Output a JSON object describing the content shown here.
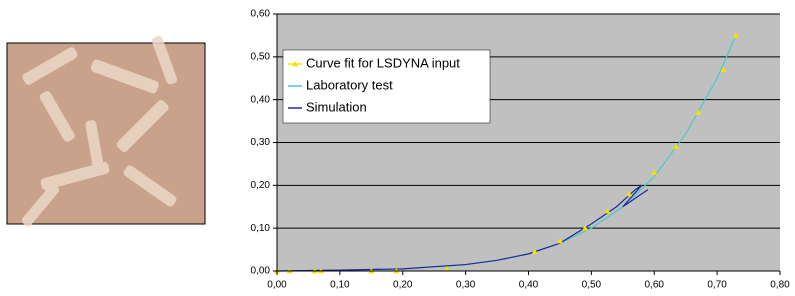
{
  "chart_data": {
    "type": "line",
    "xlim": [
      0,
      0.8
    ],
    "xticks": [
      {
        "value": 0,
        "label": "0,00"
      },
      {
        "value": 0.1,
        "label": "0,10"
      },
      {
        "value": 0.2,
        "label": "0,20"
      },
      {
        "value": 0.3,
        "label": "0,30"
      },
      {
        "value": 0.4,
        "label": "0,40"
      },
      {
        "value": 0.5,
        "label": "0,50"
      },
      {
        "value": 0.6,
        "label": "0,60"
      },
      {
        "value": 0.7,
        "label": "0,70"
      },
      {
        "value": 0.8,
        "label": "0,80"
      }
    ],
    "ylim": [
      0,
      0.6
    ],
    "yticks": [
      {
        "value": 0,
        "label": "0,00"
      },
      {
        "value": 0.1,
        "label": "0,10"
      },
      {
        "value": 0.2,
        "label": "0,20"
      },
      {
        "value": 0.3,
        "label": "0,30"
      },
      {
        "value": 0.4,
        "label": "0,40"
      },
      {
        "value": 0.5,
        "label": "0,50"
      },
      {
        "value": 0.6,
        "label": "0,60"
      }
    ],
    "grid": true,
    "legend": "upper-left",
    "series": [
      {
        "name": "Curve fit for LSDYNA input",
        "color": "#f2e200",
        "markers": true,
        "x": [
          0,
          0.02,
          0.06,
          0.07,
          0.15,
          0.19,
          0.27,
          0.41,
          0.45,
          0.49,
          0.525,
          0.56,
          0.6,
          0.635,
          0.67,
          0.71,
          0.73
        ],
        "values": [
          0,
          0,
          0,
          0,
          0,
          0,
          0.005,
          0.045,
          0.07,
          0.1,
          0.14,
          0.18,
          0.23,
          0.29,
          0.37,
          0.47,
          0.55
        ]
      },
      {
        "name": "Laboratory test",
        "color": "#4fc6c8",
        "markers": false,
        "x": [
          0,
          0.1,
          0.2,
          0.3,
          0.35,
          0.4,
          0.45,
          0.5,
          0.55,
          0.6,
          0.65,
          0.7,
          0.73
        ],
        "values": [
          0,
          0.002,
          0.005,
          0.015,
          0.025,
          0.04,
          0.065,
          0.1,
          0.15,
          0.22,
          0.32,
          0.45,
          0.55
        ]
      },
      {
        "name": "Simulation",
        "color": "#1f2a9a",
        "markers": false,
        "x": [
          0,
          0.1,
          0.2,
          0.3,
          0.35,
          0.4,
          0.45,
          0.5,
          0.54,
          0.57,
          0.58,
          0.55,
          0.59,
          0.57,
          0.59
        ],
        "values": [
          0,
          0.002,
          0.005,
          0.015,
          0.025,
          0.04,
          0.065,
          0.11,
          0.15,
          0.19,
          0.2,
          0.15,
          0.19,
          0.17,
          0.19
        ]
      }
    ]
  }
}
